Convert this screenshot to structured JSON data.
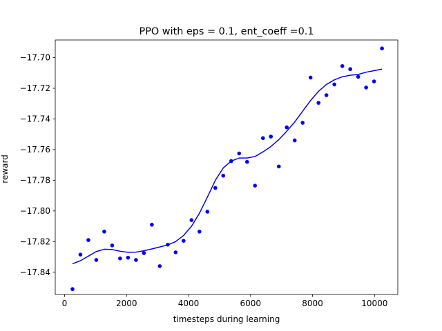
{
  "chart_data": {
    "type": "scatter",
    "title": "PPO with eps = 0.1, ent_coeff =0.1",
    "xlabel": "timesteps during learning",
    "ylabel": "reward",
    "xlim": [
      -300,
      10750
    ],
    "ylim": [
      -17.8545,
      -17.6885
    ],
    "xticks": [
      0,
      2000,
      4000,
      6000,
      8000,
      10000
    ],
    "yticks": [
      -17.84,
      -17.82,
      -17.8,
      -17.78,
      -17.76,
      -17.74,
      -17.72,
      -17.7
    ],
    "grid": false,
    "colors": {
      "points": "#0000ff",
      "trend": "#0000ff"
    },
    "series": [
      {
        "kind": "points",
        "x": [
          256,
          512,
          768,
          1024,
          1280,
          1536,
          1792,
          2048,
          2304,
          2560,
          2816,
          3072,
          3328,
          3584,
          3840,
          4096,
          4352,
          4608,
          4864,
          5120,
          5376,
          5632,
          5888,
          6144,
          6400,
          6656,
          6912,
          7168,
          7424,
          7680,
          7936,
          8192,
          8448,
          8704,
          8960,
          9216,
          9472,
          9728,
          9984,
          10240
        ],
        "y": [
          -17.851,
          -17.8285,
          -17.819,
          -17.832,
          -17.8135,
          -17.8225,
          -17.831,
          -17.8305,
          -17.832,
          -17.8275,
          -17.809,
          -17.836,
          -17.822,
          -17.827,
          -17.8195,
          -17.806,
          -17.8135,
          -17.8005,
          -17.785,
          -17.777,
          -17.7675,
          -17.7625,
          -17.768,
          -17.7835,
          -17.7525,
          -17.7515,
          -17.771,
          -17.7455,
          -17.754,
          -17.7425,
          -17.713,
          -17.7295,
          -17.7245,
          -17.7175,
          -17.7055,
          -17.7075,
          -17.7125,
          -17.7195,
          -17.7155,
          -17.694
        ]
      },
      {
        "kind": "trend",
        "x": [
          256,
          512,
          768,
          1024,
          1280,
          1536,
          1792,
          2048,
          2304,
          2560,
          2816,
          3072,
          3328,
          3584,
          3840,
          4096,
          4352,
          4608,
          4864,
          5120,
          5376,
          5632,
          5888,
          6144,
          6400,
          6656,
          6912,
          7168,
          7424,
          7680,
          7936,
          8192,
          8448,
          8704,
          8960,
          9216,
          9472,
          9728,
          9984,
          10240
        ],
        "y": [
          -17.8345,
          -17.8325,
          -17.8295,
          -17.8265,
          -17.825,
          -17.8252,
          -17.8263,
          -17.827,
          -17.8269,
          -17.826,
          -17.8248,
          -17.8235,
          -17.8222,
          -17.82,
          -17.816,
          -17.81,
          -17.8015,
          -17.791,
          -17.78,
          -17.772,
          -17.7675,
          -17.7655,
          -17.7655,
          -17.7645,
          -17.7615,
          -17.758,
          -17.7535,
          -17.748,
          -17.742,
          -17.735,
          -17.728,
          -17.722,
          -17.7175,
          -17.7145,
          -17.7125,
          -17.7115,
          -17.711,
          -17.7095,
          -17.7085,
          -17.7075
        ]
      }
    ]
  }
}
